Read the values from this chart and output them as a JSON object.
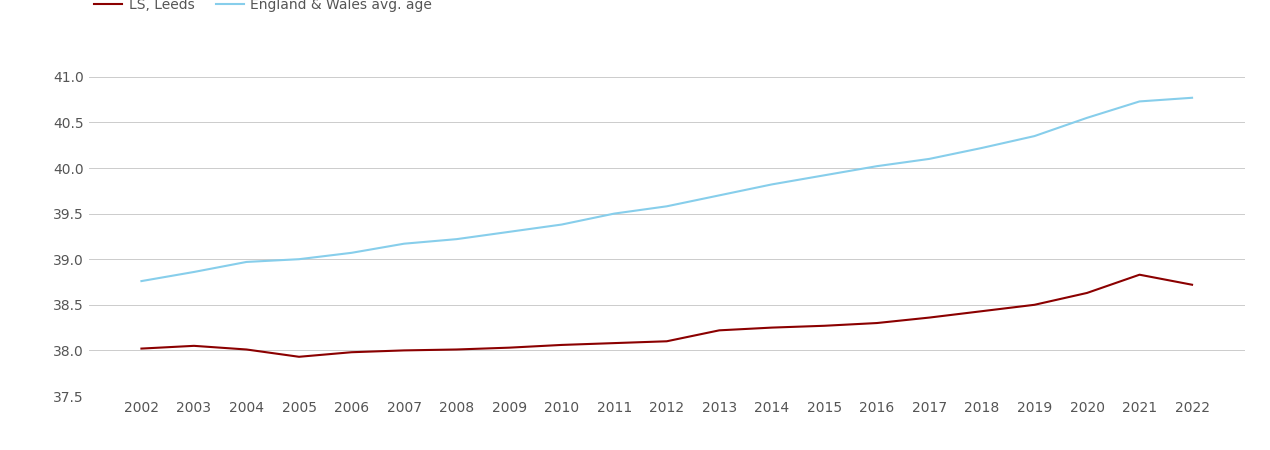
{
  "years": [
    2002,
    2003,
    2004,
    2005,
    2006,
    2007,
    2008,
    2009,
    2010,
    2011,
    2012,
    2013,
    2014,
    2015,
    2016,
    2017,
    2018,
    2019,
    2020,
    2021,
    2022
  ],
  "ls_leeds": [
    38.02,
    38.05,
    38.01,
    37.93,
    37.98,
    38.0,
    38.01,
    38.03,
    38.06,
    38.08,
    38.1,
    38.22,
    38.25,
    38.27,
    38.3,
    38.36,
    38.43,
    38.5,
    38.63,
    38.83,
    38.72
  ],
  "eng_wales": [
    38.76,
    38.86,
    38.97,
    39.0,
    39.07,
    39.17,
    39.22,
    39.3,
    39.38,
    39.5,
    39.58,
    39.7,
    39.82,
    39.92,
    40.02,
    40.1,
    40.22,
    40.35,
    40.55,
    40.73,
    40.77
  ],
  "ls_leeds_color": "#8B0000",
  "eng_wales_color": "#87CEEB",
  "ls_leeds_label": "LS, Leeds",
  "eng_wales_label": "England & Wales avg. age",
  "ylim": [
    37.5,
    41.25
  ],
  "yticks": [
    37.5,
    38.0,
    38.5,
    39.0,
    39.5,
    40.0,
    40.5,
    41.0
  ],
  "background_color": "#ffffff",
  "line_width": 1.5,
  "legend_fontsize": 10,
  "tick_fontsize": 10,
  "tick_color": "#555555",
  "grid_color": "#cccccc",
  "grid_linewidth": 0.7
}
